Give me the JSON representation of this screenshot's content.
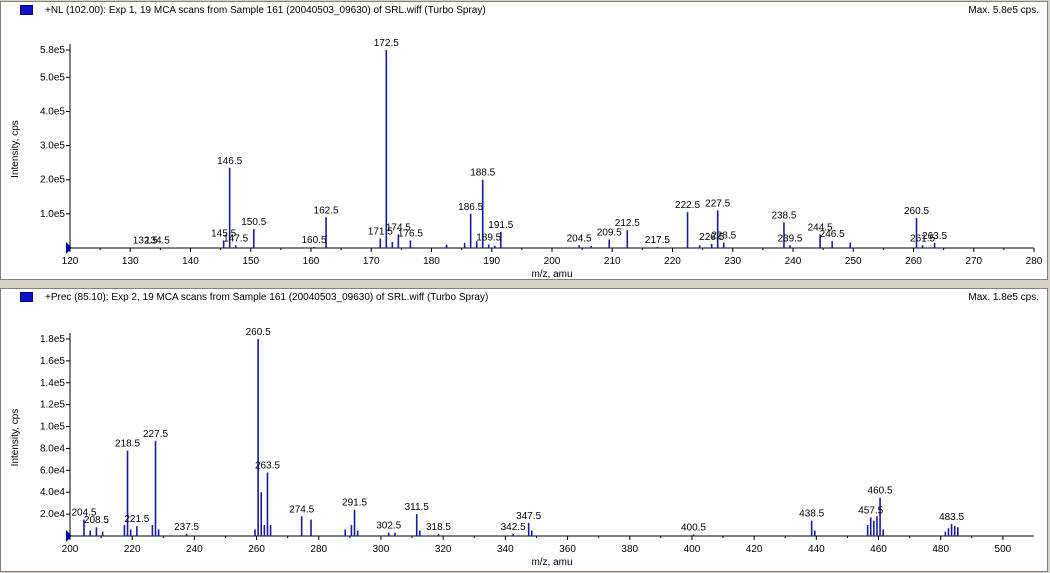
{
  "panels": [
    {
      "title": "+NL (102.00): Exp 1, 19 MCA scans from Sample 161 (20040503_09630) of SRL.wiff (Turbo Spray)",
      "max_label": "Max. 5.8e5 cps.",
      "series_color": "#1a1aa0"
    },
    {
      "title": "+Prec (85.10): Exp 2, 19 MCA scans from Sample 161 (20040503_09630) of SRL.wiff (Turbo Spray)",
      "max_label": "Max. 1.8e5 cps.",
      "series_color": "#1a1aa0"
    }
  ],
  "chart_data": [
    {
      "type": "bar",
      "xlabel": "m/z, amu",
      "ylabel": "Intensity, cps",
      "xlim": [
        120,
        280
      ],
      "ylim": [
        0,
        580000
      ],
      "xticks": [
        120,
        130,
        140,
        150,
        160,
        170,
        180,
        190,
        200,
        210,
        220,
        230,
        240,
        250,
        260,
        270,
        280
      ],
      "yticks": [
        {
          "value": 100000,
          "label": "1.0e5"
        },
        {
          "value": 200000,
          "label": "2.0e5"
        },
        {
          "value": 300000,
          "label": "3.0e5"
        },
        {
          "value": 400000,
          "label": "4.0e5"
        },
        {
          "value": 500000,
          "label": "5.0e5"
        },
        {
          "value": 580000,
          "label": "5.8e5"
        }
      ],
      "peaks": [
        {
          "x": 132.5,
          "y": 2000
        },
        {
          "x": 134.5,
          "y": 2000
        },
        {
          "x": 145.5,
          "y": 22000
        },
        {
          "x": 146.5,
          "y": 235000
        },
        {
          "x": 147.5,
          "y": 8000
        },
        {
          "x": 150.5,
          "y": 55000
        },
        {
          "x": 160.5,
          "y": 3000
        },
        {
          "x": 162.5,
          "y": 90000
        },
        {
          "x": 171.5,
          "y": 28000
        },
        {
          "x": 172.5,
          "y": 580000
        },
        {
          "x": 173.5,
          "y": 18000
        },
        {
          "x": 174.5,
          "y": 40000
        },
        {
          "x": 176.5,
          "y": 22000
        },
        {
          "x": 182.5,
          "y": 10000
        },
        {
          "x": 185.5,
          "y": 15000
        },
        {
          "x": 186.5,
          "y": 100000
        },
        {
          "x": 187.5,
          "y": 20000
        },
        {
          "x": 188.5,
          "y": 200000
        },
        {
          "x": 189.5,
          "y": 10000
        },
        {
          "x": 190.5,
          "y": 7000
        },
        {
          "x": 191.5,
          "y": 47000
        },
        {
          "x": 204.5,
          "y": 8000
        },
        {
          "x": 206.5,
          "y": 6000
        },
        {
          "x": 209.5,
          "y": 25000
        },
        {
          "x": 212.5,
          "y": 52000
        },
        {
          "x": 217.5,
          "y": 3000
        },
        {
          "x": 222.5,
          "y": 105000
        },
        {
          "x": 224.5,
          "y": 8000
        },
        {
          "x": 226.5,
          "y": 12000
        },
        {
          "x": 227.5,
          "y": 110000
        },
        {
          "x": 228.5,
          "y": 16000
        },
        {
          "x": 238.5,
          "y": 75000
        },
        {
          "x": 239.5,
          "y": 8000
        },
        {
          "x": 244.5,
          "y": 40000
        },
        {
          "x": 246.5,
          "y": 20000
        },
        {
          "x": 249.5,
          "y": 16000
        },
        {
          "x": 260.5,
          "y": 88000
        },
        {
          "x": 261.5,
          "y": 8000
        },
        {
          "x": 263.5,
          "y": 15000
        }
      ],
      "labels": [
        {
          "x": 132.5,
          "text": "132.5"
        },
        {
          "x": 134.5,
          "text": "134.5"
        },
        {
          "x": 145.5,
          "text": "145.5"
        },
        {
          "x": 146.5,
          "text": "146.5"
        },
        {
          "x": 147.5,
          "text": "147.5"
        },
        {
          "x": 150.5,
          "text": "150.5"
        },
        {
          "x": 160.5,
          "text": "160.5"
        },
        {
          "x": 162.5,
          "text": "162.5"
        },
        {
          "x": 171.5,
          "text": "171.5"
        },
        {
          "x": 172.5,
          "text": "172.5"
        },
        {
          "x": 174.5,
          "text": "174.5"
        },
        {
          "x": 176.5,
          "text": "176.5"
        },
        {
          "x": 186.5,
          "text": "186.5"
        },
        {
          "x": 188.5,
          "text": "188.5"
        },
        {
          "x": 189.5,
          "text": "189.5"
        },
        {
          "x": 191.5,
          "text": "191.5"
        },
        {
          "x": 204.5,
          "text": "204.5"
        },
        {
          "x": 209.5,
          "text": "209.5"
        },
        {
          "x": 212.5,
          "text": "212.5"
        },
        {
          "x": 217.5,
          "text": "217.5"
        },
        {
          "x": 222.5,
          "text": "222.5"
        },
        {
          "x": 226.5,
          "text": "226.5"
        },
        {
          "x": 227.5,
          "text": "227.5"
        },
        {
          "x": 228.5,
          "text": "228.5"
        },
        {
          "x": 238.5,
          "text": "238.5"
        },
        {
          "x": 239.5,
          "text": "239.5"
        },
        {
          "x": 244.5,
          "text": "244.5"
        },
        {
          "x": 246.5,
          "text": "246.5"
        },
        {
          "x": 260.5,
          "text": "260.5"
        },
        {
          "x": 261.5,
          "text": "261.5"
        },
        {
          "x": 263.5,
          "text": "263.5"
        }
      ]
    },
    {
      "type": "bar",
      "xlabel": "m/z, amu",
      "ylabel": "Intensity, cps",
      "xlim": [
        200,
        510
      ],
      "ylim": [
        0,
        180000
      ],
      "xticks": [
        200,
        220,
        240,
        260,
        280,
        300,
        320,
        340,
        360,
        380,
        400,
        420,
        440,
        460,
        480,
        500
      ],
      "yticks": [
        {
          "value": 20000,
          "label": "2.0e4"
        },
        {
          "value": 40000,
          "label": "4.0e4"
        },
        {
          "value": 60000,
          "label": "6.0e4"
        },
        {
          "value": 80000,
          "label": "8.0e4"
        },
        {
          "value": 100000,
          "label": "1.0e5"
        },
        {
          "value": 120000,
          "label": "1.2e5"
        },
        {
          "value": 140000,
          "label": "1.4e5"
        },
        {
          "value": 160000,
          "label": "1.6e5"
        },
        {
          "value": 180000,
          "label": "1.8e5"
        }
      ],
      "peaks": [
        {
          "x": 204.5,
          "y": 15000
        },
        {
          "x": 206.5,
          "y": 5000
        },
        {
          "x": 208.5,
          "y": 8000
        },
        {
          "x": 210.5,
          "y": 4000
        },
        {
          "x": 217.5,
          "y": 10000
        },
        {
          "x": 218.5,
          "y": 78000
        },
        {
          "x": 219.5,
          "y": 6000
        },
        {
          "x": 221.5,
          "y": 9000
        },
        {
          "x": 226.5,
          "y": 10000
        },
        {
          "x": 227.5,
          "y": 87000
        },
        {
          "x": 228.5,
          "y": 6000
        },
        {
          "x": 237.5,
          "y": 2000
        },
        {
          "x": 259.5,
          "y": 6000
        },
        {
          "x": 260.5,
          "y": 180000
        },
        {
          "x": 261.5,
          "y": 40000
        },
        {
          "x": 262.5,
          "y": 10000
        },
        {
          "x": 263.5,
          "y": 58000
        },
        {
          "x": 264.5,
          "y": 10000
        },
        {
          "x": 274.5,
          "y": 18000
        },
        {
          "x": 277.5,
          "y": 15000
        },
        {
          "x": 288.5,
          "y": 6000
        },
        {
          "x": 290.5,
          "y": 10000
        },
        {
          "x": 291.5,
          "y": 24000
        },
        {
          "x": 292.5,
          "y": 5000
        },
        {
          "x": 302.5,
          "y": 3000
        },
        {
          "x": 304.5,
          "y": 3000
        },
        {
          "x": 311.5,
          "y": 20000
        },
        {
          "x": 312.5,
          "y": 5000
        },
        {
          "x": 318.5,
          "y": 2000
        },
        {
          "x": 342.5,
          "y": 2000
        },
        {
          "x": 347.5,
          "y": 12000
        },
        {
          "x": 348.5,
          "y": 5000
        },
        {
          "x": 400.5,
          "y": 1500
        },
        {
          "x": 438.5,
          "y": 14000
        },
        {
          "x": 439.5,
          "y": 5000
        },
        {
          "x": 456.5,
          "y": 10000
        },
        {
          "x": 457.5,
          "y": 17000
        },
        {
          "x": 458.5,
          "y": 14000
        },
        {
          "x": 459.5,
          "y": 18000
        },
        {
          "x": 460.5,
          "y": 35000
        },
        {
          "x": 461.5,
          "y": 6000
        },
        {
          "x": 481.5,
          "y": 4000
        },
        {
          "x": 482.5,
          "y": 7000
        },
        {
          "x": 483.5,
          "y": 11000
        },
        {
          "x": 484.5,
          "y": 9000
        },
        {
          "x": 485.5,
          "y": 8000
        }
      ],
      "labels": [
        {
          "x": 204.5,
          "text": "204.5"
        },
        {
          "x": 208.5,
          "text": "208.5"
        },
        {
          "x": 218.5,
          "text": "218.5"
        },
        {
          "x": 221.5,
          "text": "221.5"
        },
        {
          "x": 227.5,
          "text": "227.5"
        },
        {
          "x": 237.5,
          "text": "237.5"
        },
        {
          "x": 260.5,
          "text": "260.5"
        },
        {
          "x": 263.5,
          "text": "263.5"
        },
        {
          "x": 274.5,
          "text": "274.5"
        },
        {
          "x": 291.5,
          "text": "291.5"
        },
        {
          "x": 302.5,
          "text": "302.5"
        },
        {
          "x": 311.5,
          "text": "311.5"
        },
        {
          "x": 318.5,
          "text": "318.5"
        },
        {
          "x": 342.5,
          "text": "342.5"
        },
        {
          "x": 347.5,
          "text": "347.5"
        },
        {
          "x": 400.5,
          "text": "400.5"
        },
        {
          "x": 438.5,
          "text": "438.5"
        },
        {
          "x": 457.5,
          "text": "457.5"
        },
        {
          "x": 460.5,
          "text": "460.5"
        },
        {
          "x": 483.5,
          "text": "483.5"
        }
      ]
    }
  ]
}
